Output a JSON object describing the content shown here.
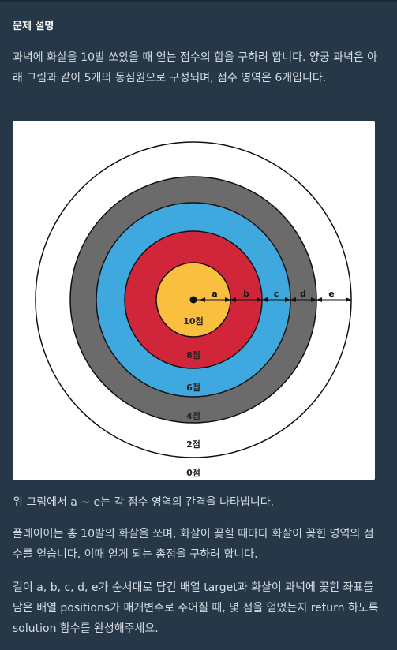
{
  "section": {
    "title": "문제 설명"
  },
  "paragraphs": {
    "p1": "과녁에 화살을 10발 쏘았을 때 얻는 점수의 합을 구하려 합니다. 양궁 과녁은 아래 그림과 같이 5개의 동심원으로 구성되며, 점수 영역은 6개입니다.",
    "p2": "위 그림에서 a ~ e는 각 점수 영역의 간격을 나타냅니다.",
    "p3": "플레이어는 총 10발의 화살을 쏘며, 화살이 꽂힐 때마다 화살이 꽂힌 영역의 점수를 얻습니다. 이때 얻게 되는 총점을 구하려 합니다.",
    "p4": "길이 a, b, c, d, e가 순서대로 담긴 배열 target과 화살이 과녁에 꽂힌 좌표를 담은 배열 positions가 매개변수로 주어질 때, 몇 점을 얻었는지 return 하도록 solution 함수를 완성해주세요."
  },
  "target_figure": {
    "rings": [
      {
        "label": "10점",
        "color": "#fbbf3f"
      },
      {
        "label": "8점",
        "color": "#d1253a"
      },
      {
        "label": "6점",
        "color": "#3ea8df"
      },
      {
        "label": "4점",
        "color": "#6b6b6b"
      },
      {
        "label": "2점",
        "color": "#ffffff"
      },
      {
        "label": "0점",
        "color": "#ffffff"
      }
    ],
    "gap_labels": [
      "a",
      "b",
      "c",
      "d",
      "e"
    ]
  },
  "colors": {
    "background": "#263747",
    "text": "#d6dde4",
    "title": "#ffffff"
  }
}
